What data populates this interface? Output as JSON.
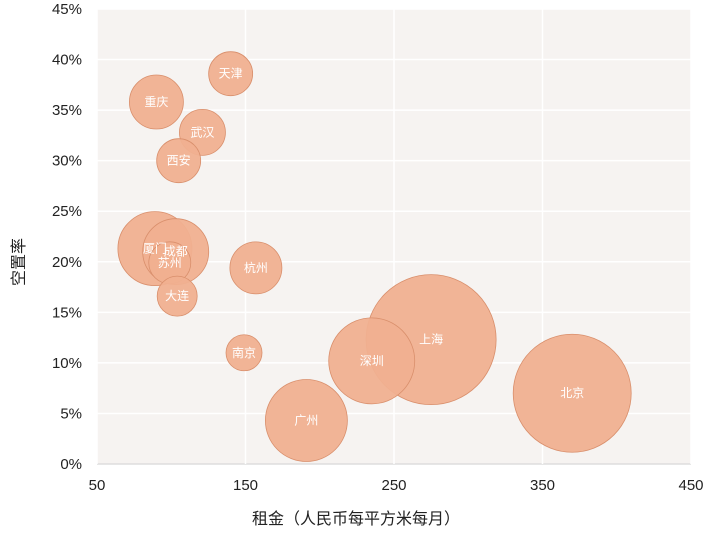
{
  "chart_data": {
    "type": "bubble",
    "title": "",
    "xlabel": "租金（人民币每平方米每月）",
    "ylabel": "空置率",
    "xlim": [
      50,
      450
    ],
    "ylim": [
      0,
      45
    ],
    "xticks": [
      "50",
      "150",
      "250",
      "350",
      "450"
    ],
    "xtick_values": [
      50,
      150,
      250,
      350,
      450
    ],
    "yticks": [
      "0%",
      "5%",
      "10%",
      "15%",
      "20%",
      "25%",
      "30%",
      "35%",
      "40%",
      "45%"
    ],
    "ytick_values": [
      0,
      5,
      10,
      15,
      20,
      25,
      30,
      35,
      40,
      45
    ],
    "grid": true,
    "legend": null,
    "bubble_color": "#f0b090",
    "bubble_stroke": "#d98f6c",
    "plot_bg": "#f6f3f1",
    "points": [
      {
        "label": "天津",
        "x": 140,
        "y": 38.6,
        "r": 22
      },
      {
        "label": "重庆",
        "x": 90,
        "y": 35.8,
        "r": 27
      },
      {
        "label": "武汉",
        "x": 121,
        "y": 32.8,
        "r": 23
      },
      {
        "label": "西安",
        "x": 105,
        "y": 30.0,
        "r": 22
      },
      {
        "label": "厦门",
        "x": 89,
        "y": 21.3,
        "r": 37
      },
      {
        "label": "成都",
        "x": 103,
        "y": 21.0,
        "r": 33
      },
      {
        "label": "苏州",
        "x": 99,
        "y": 19.9,
        "r": 21
      },
      {
        "label": "大连",
        "x": 104,
        "y": 16.6,
        "r": 20
      },
      {
        "label": "杭州",
        "x": 157,
        "y": 19.4,
        "r": 26
      },
      {
        "label": "南京",
        "x": 149,
        "y": 11.0,
        "r": 18
      },
      {
        "label": "上海",
        "x": 275,
        "y": 12.3,
        "r": 65
      },
      {
        "label": "深圳",
        "x": 235,
        "y": 10.2,
        "r": 43
      },
      {
        "label": "广州",
        "x": 191,
        "y": 4.3,
        "r": 41
      },
      {
        "label": "北京",
        "x": 370,
        "y": 7.0,
        "r": 59
      }
    ]
  }
}
